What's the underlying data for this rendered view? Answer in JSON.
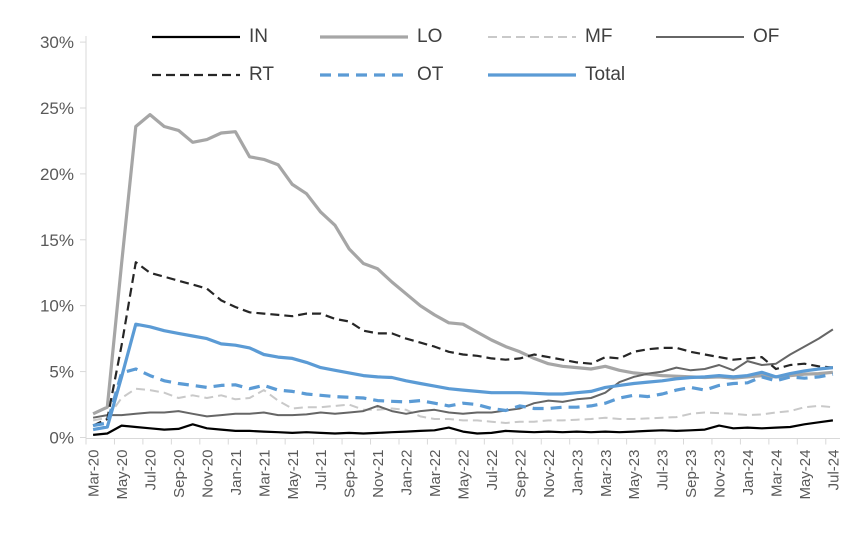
{
  "chart_data": {
    "type": "line",
    "title": "",
    "xlabel": "",
    "ylabel": "",
    "ylim": [
      0,
      30
    ],
    "grid": false,
    "legend_position": "top",
    "y_tick_labels": [
      "0%",
      "5%",
      "10%",
      "15%",
      "20%",
      "25%",
      "30%"
    ],
    "x_tick_label_every": 2,
    "categories": [
      "Mar-20",
      "Apr-20",
      "May-20",
      "Jun-20",
      "Jul-20",
      "Aug-20",
      "Sep-20",
      "Oct-20",
      "Nov-20",
      "Dec-20",
      "Jan-21",
      "Feb-21",
      "Mar-21",
      "Apr-21",
      "May-21",
      "Jun-21",
      "Jul-21",
      "Aug-21",
      "Sep-21",
      "Oct-21",
      "Nov-21",
      "Dec-21",
      "Jan-22",
      "Feb-22",
      "Mar-22",
      "Apr-22",
      "May-22",
      "Jun-22",
      "Jul-22",
      "Aug-22",
      "Sep-22",
      "Oct-22",
      "Nov-22",
      "Dec-22",
      "Jan-23",
      "Feb-23",
      "Mar-23",
      "Apr-23",
      "May-23",
      "Jun-23",
      "Jul-23",
      "Aug-23",
      "Sep-23",
      "Oct-23",
      "Nov-23",
      "Dec-23",
      "Jan-24",
      "Feb-24",
      "Mar-24",
      "Apr-24",
      "May-24",
      "Jun-24",
      "Jul-24"
    ],
    "shown_x_tick_labels": [
      "Mar-20",
      "May-20",
      "Jul-20",
      "Sep-20",
      "Nov-20",
      "Jan-21",
      "Mar-21",
      "May-21",
      "Jul-21",
      "Sep-21",
      "Nov-21",
      "Jan-22",
      "Mar-22",
      "May-22",
      "Jul-22",
      "Sep-22",
      "Nov-22",
      "Jan-23",
      "Mar-23",
      "May-23",
      "Jul-23",
      "Sep-23",
      "Nov-23",
      "Jan-24",
      "Mar-24",
      "May-24",
      "Jul-24"
    ],
    "legend_rows": [
      [
        "IN",
        "LO",
        "MF",
        "OF"
      ],
      [
        "RT",
        "OT",
        "Total"
      ]
    ],
    "series": [
      {
        "name": "IN",
        "color": "#000000",
        "style": "solid",
        "width": 2.2,
        "values": [
          0.2,
          0.3,
          0.9,
          0.8,
          0.7,
          0.6,
          0.65,
          1.0,
          0.7,
          0.6,
          0.5,
          0.5,
          0.45,
          0.4,
          0.35,
          0.4,
          0.35,
          0.3,
          0.35,
          0.3,
          0.35,
          0.4,
          0.45,
          0.5,
          0.55,
          0.75,
          0.45,
          0.3,
          0.35,
          0.5,
          0.45,
          0.4,
          0.45,
          0.4,
          0.45,
          0.4,
          0.45,
          0.4,
          0.45,
          0.5,
          0.55,
          0.5,
          0.55,
          0.6,
          0.9,
          0.7,
          0.75,
          0.7,
          0.75,
          0.8,
          1.0,
          1.15,
          1.3
        ]
      },
      {
        "name": "LO",
        "color": "#a6a6a6",
        "style": "solid",
        "width": 3.2,
        "values": [
          1.8,
          2.3,
          13.2,
          23.6,
          24.5,
          23.6,
          23.3,
          22.4,
          22.6,
          23.1,
          23.2,
          21.3,
          21.1,
          20.7,
          19.2,
          18.5,
          17.1,
          16.1,
          14.3,
          13.2,
          12.8,
          11.8,
          10.9,
          10.0,
          9.3,
          8.7,
          8.6,
          8.0,
          7.4,
          6.9,
          6.5,
          6.0,
          5.6,
          5.4,
          5.3,
          5.2,
          5.4,
          5.1,
          4.9,
          4.8,
          4.7,
          4.65,
          4.6,
          4.55,
          4.6,
          4.5,
          4.6,
          4.7,
          4.6,
          4.7,
          4.8,
          4.85,
          4.95
        ]
      },
      {
        "name": "MF",
        "color": "#c9c9c9",
        "style": "dashed",
        "width": 2,
        "values": [
          1.3,
          1.5,
          3.0,
          3.7,
          3.6,
          3.4,
          3.0,
          3.2,
          3.0,
          3.2,
          2.9,
          3.0,
          3.6,
          2.8,
          2.2,
          2.3,
          2.3,
          2.4,
          2.5,
          2.1,
          2.1,
          2.2,
          2.1,
          1.6,
          1.4,
          1.4,
          1.3,
          1.3,
          1.2,
          1.1,
          1.2,
          1.2,
          1.3,
          1.3,
          1.35,
          1.4,
          1.5,
          1.4,
          1.4,
          1.45,
          1.5,
          1.55,
          1.8,
          1.9,
          1.85,
          1.8,
          1.7,
          1.75,
          1.9,
          2.0,
          2.3,
          2.4,
          2.3
        ]
      },
      {
        "name": "OF",
        "color": "#666666",
        "style": "solid",
        "width": 2,
        "values": [
          1.5,
          1.7,
          1.7,
          1.8,
          1.9,
          1.9,
          2.0,
          1.8,
          1.6,
          1.7,
          1.8,
          1.8,
          1.9,
          1.7,
          1.7,
          1.75,
          1.9,
          1.8,
          1.9,
          2.0,
          2.4,
          2.0,
          1.8,
          2.0,
          2.1,
          1.9,
          1.8,
          1.9,
          1.9,
          2.05,
          2.2,
          2.6,
          2.8,
          2.7,
          2.9,
          3.0,
          3.4,
          4.2,
          4.6,
          4.85,
          5.0,
          5.3,
          5.1,
          5.2,
          5.5,
          5.1,
          5.8,
          5.5,
          5.6,
          6.3,
          6.9,
          7.5,
          8.2
        ]
      },
      {
        "name": "RT",
        "color": "#262626",
        "style": "dashed",
        "width": 2.2,
        "values": [
          0.9,
          1.4,
          7.0,
          13.3,
          12.5,
          12.2,
          11.9,
          11.6,
          11.3,
          10.4,
          9.9,
          9.5,
          9.4,
          9.3,
          9.2,
          9.4,
          9.4,
          9.0,
          8.8,
          8.1,
          7.9,
          7.9,
          7.5,
          7.2,
          6.9,
          6.5,
          6.3,
          6.2,
          6.0,
          5.9,
          6.0,
          6.3,
          6.1,
          5.9,
          5.7,
          5.6,
          6.1,
          6.0,
          6.5,
          6.7,
          6.8,
          6.8,
          6.5,
          6.3,
          6.1,
          5.9,
          6.0,
          6.1,
          5.2,
          5.5,
          5.6,
          5.4,
          5.3
        ]
      },
      {
        "name": "OT",
        "color": "#5b9bd5",
        "style": "dashed",
        "width": 3.2,
        "values": [
          0.9,
          1.1,
          4.9,
          5.2,
          4.7,
          4.3,
          4.1,
          3.95,
          3.8,
          3.95,
          4.0,
          3.7,
          3.95,
          3.6,
          3.5,
          3.3,
          3.2,
          3.1,
          3.05,
          3.0,
          2.8,
          2.75,
          2.7,
          2.8,
          2.6,
          2.4,
          2.6,
          2.5,
          2.2,
          2.05,
          2.4,
          2.2,
          2.2,
          2.3,
          2.3,
          2.4,
          2.6,
          3.0,
          3.2,
          3.1,
          3.3,
          3.6,
          3.8,
          3.6,
          3.95,
          4.1,
          4.15,
          4.6,
          4.3,
          4.6,
          4.5,
          4.6,
          4.8
        ]
      },
      {
        "name": "Total",
        "color": "#5b9bd5",
        "style": "solid",
        "width": 3.2,
        "values": [
          0.6,
          0.8,
          4.6,
          8.6,
          8.4,
          8.1,
          7.9,
          7.7,
          7.5,
          7.1,
          7.0,
          6.8,
          6.3,
          6.1,
          6.0,
          5.7,
          5.3,
          5.1,
          4.9,
          4.7,
          4.6,
          4.55,
          4.3,
          4.1,
          3.9,
          3.7,
          3.6,
          3.5,
          3.4,
          3.4,
          3.4,
          3.35,
          3.3,
          3.3,
          3.4,
          3.5,
          3.8,
          3.95,
          4.1,
          4.2,
          4.3,
          4.45,
          4.55,
          4.6,
          4.7,
          4.6,
          4.7,
          4.95,
          4.6,
          4.85,
          5.05,
          5.2,
          5.3
        ]
      }
    ]
  },
  "style": {
    "axis_color": "#d9d9d9",
    "tick_label_color": "#595959",
    "legend_text_color": "#404040",
    "background": "#ffffff"
  }
}
